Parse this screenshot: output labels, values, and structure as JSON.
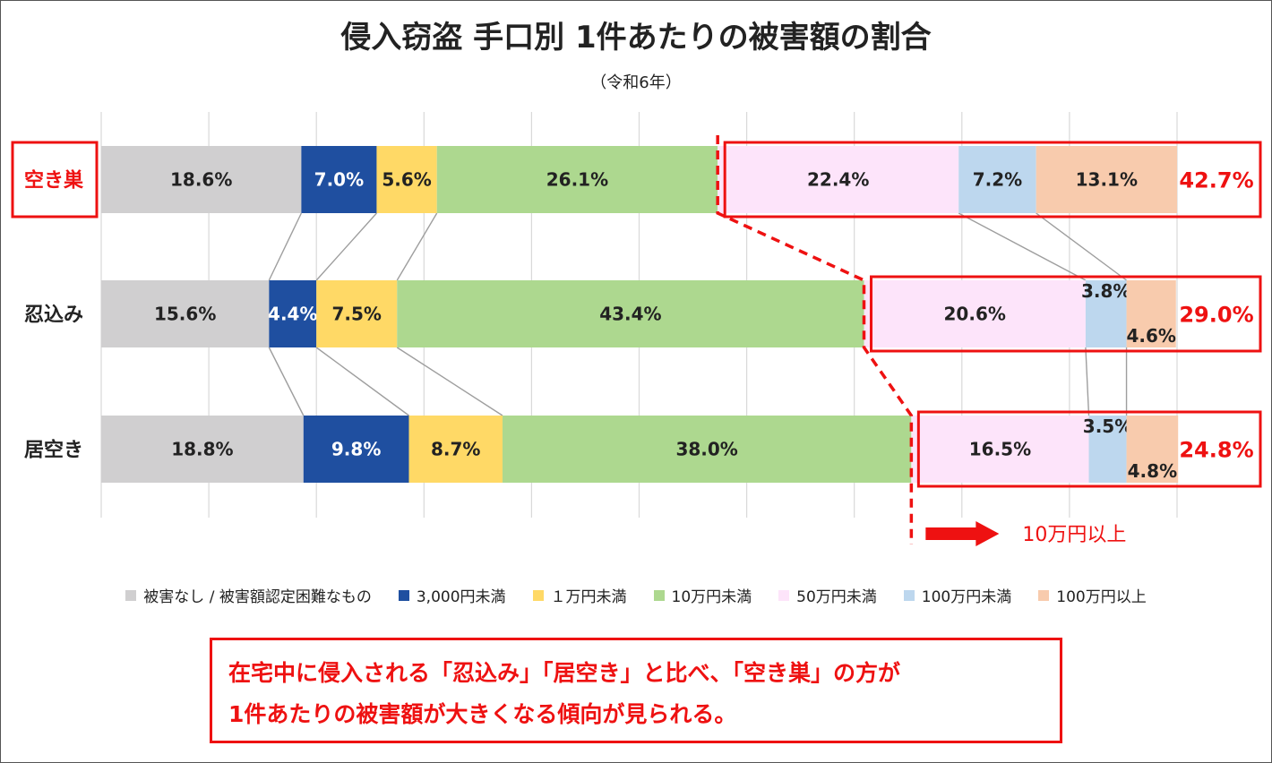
{
  "header": {
    "title": "侵入窃盗 手口別 1件あたりの被害額の割合",
    "subtitle": "（令和6年）"
  },
  "chart_data": {
    "type": "bar",
    "orientation": "horizontal",
    "stacked": true,
    "categories": [
      "空き巣",
      "忍込み",
      "居空き"
    ],
    "series": [
      {
        "name": "被害なし / 被害額認定困難なもの",
        "color": "#d0cfd0",
        "text_color": "#222222",
        "values": [
          18.6,
          15.6,
          18.8
        ]
      },
      {
        "name": "3,000円未満",
        "color": "#1f4fa0",
        "text_color": "#ffffff",
        "values": [
          7.0,
          4.4,
          9.8
        ]
      },
      {
        "name": "１万円未満",
        "color": "#ffd966",
        "text_color": "#222222",
        "values": [
          5.6,
          7.5,
          8.7
        ]
      },
      {
        "name": "10万円未満",
        "color": "#add88f",
        "text_color": "#222222",
        "values": [
          26.1,
          43.4,
          38.0
        ]
      },
      {
        "name": "50万円未満",
        "color": "#fde4fa",
        "text_color": "#222222",
        "values": [
          22.4,
          20.6,
          16.5
        ]
      },
      {
        "name": "100万円未満",
        "color": "#bdd7ee",
        "text_color": "#222222",
        "values": [
          7.2,
          3.8,
          3.5
        ]
      },
      {
        "name": "100万円以上",
        "color": "#f8cbad",
        "text_color": "#222222",
        "values": [
          13.1,
          4.6,
          4.8
        ]
      }
    ],
    "value_labels": [
      [
        "18.6%",
        "7.0%",
        "5.6%",
        "26.1%",
        "22.4%",
        "7.2%",
        "13.1%"
      ],
      [
        "15.6%",
        "4.4%",
        "7.5%",
        "43.4%",
        "20.6%",
        "3.8%",
        "4.6%"
      ],
      [
        "18.8%",
        "9.8%",
        "8.7%",
        "38.0%",
        "16.5%",
        "3.5%",
        "4.8%"
      ]
    ],
    "highlight_totals": [
      "42.7%",
      "29.0%",
      "24.8%"
    ],
    "highlight_category": "空き巣",
    "annotation": "10万円以上",
    "xlim": [
      0,
      100
    ],
    "grid": true,
    "legend_position": "bottom",
    "accent_color": "#ee1111"
  },
  "note": {
    "line1": "在宅中に侵入される「忍込み」「居空き」と比べ、「空き巣」の方が",
    "line2": "1件あたりの被害額が大きくなる傾向が見られる。"
  }
}
